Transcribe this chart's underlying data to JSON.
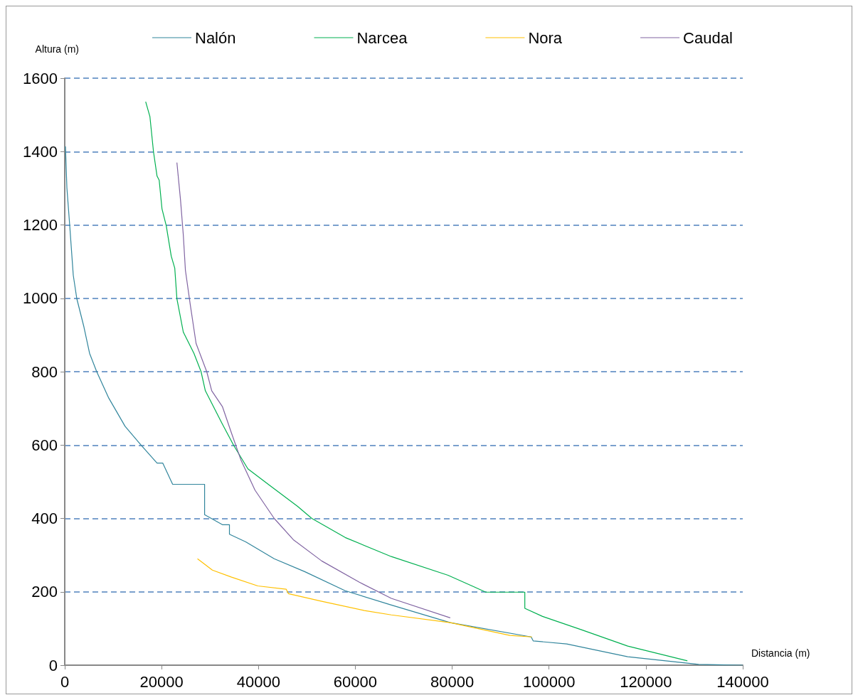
{
  "chart_data": {
    "type": "line",
    "xlabel": "Distancia (m)",
    "ylabel": "Altura (m)",
    "xlim": [
      0,
      140000
    ],
    "xticks": [
      0,
      20000,
      40000,
      60000,
      80000,
      100000,
      120000,
      140000
    ],
    "ylim": [
      0,
      1600
    ],
    "yticks": [
      0,
      200,
      400,
      600,
      800,
      1000,
      1200,
      1400,
      1600
    ],
    "grid": "y",
    "legend": "top",
    "marker": "none",
    "line_style": "solid",
    "series": [
      {
        "name": "Nalón",
        "color": "#31859c",
        "x": [
          150,
          440,
          1030,
          1760,
          2490,
          3960,
          5130,
          6600,
          9090,
          12460,
          15830,
          19060,
          20230,
          22280,
          28880,
          28880,
          32550,
          34010,
          34010,
          37380,
          43250,
          49550,
          57910,
          67440,
          79600,
          96300,
          96750,
          103650,
          116250,
          130900,
          140000
        ],
        "values": [
          1414,
          1302,
          1198,
          1063,
          999,
          922,
          850,
          800,
          728,
          651,
          599,
          551,
          551,
          493,
          493,
          410,
          383,
          383,
          357,
          336,
          290,
          255,
          203,
          164,
          116,
          77,
          66,
          58,
          23,
          2,
          0
        ]
      },
      {
        "name": "Narcea",
        "color": "#00b050",
        "x": [
          16710,
          17590,
          18330,
          19060,
          19500,
          20080,
          20960,
          21990,
          22720,
          23160,
          24480,
          26680,
          28150,
          29030,
          32550,
          34890,
          37820,
          42220,
          48080,
          51020,
          57910,
          67440,
          79160,
          84590,
          86930,
          95000,
          95000,
          98660,
          106580,
          116250,
          128570
        ],
        "values": [
          1536,
          1495,
          1399,
          1333,
          1322,
          1244,
          1198,
          1115,
          1082,
          999,
          908,
          850,
          800,
          748,
          657,
          599,
          535,
          491,
          433,
          400,
          348,
          296,
          245,
          213,
          199,
          199,
          155,
          133,
          97,
          52,
          12
        ]
      },
      {
        "name": "Nora",
        "color": "#ffc000",
        "x": [
          27410,
          30490,
          34450,
          39870,
          45740,
          46180,
          53070,
          61860,
          67440,
          79600,
          91920,
          96460
        ],
        "values": [
          290,
          259,
          240,
          216,
          207,
          195,
          174,
          149,
          137,
          116,
          81,
          77
        ]
      },
      {
        "name": "Caudal",
        "color": "#8064a2",
        "x": [
          23160,
          23900,
          24480,
          24920,
          25950,
          27120,
          29320,
          30350,
          32550,
          34450,
          36360,
          39290,
          43250,
          47200,
          53070,
          60840,
          67440,
          79600
        ],
        "values": [
          1370,
          1269,
          1173,
          1076,
          980,
          877,
          800,
          748,
          705,
          632,
          560,
          477,
          400,
          342,
          284,
          226,
          182,
          129
        ]
      }
    ]
  }
}
